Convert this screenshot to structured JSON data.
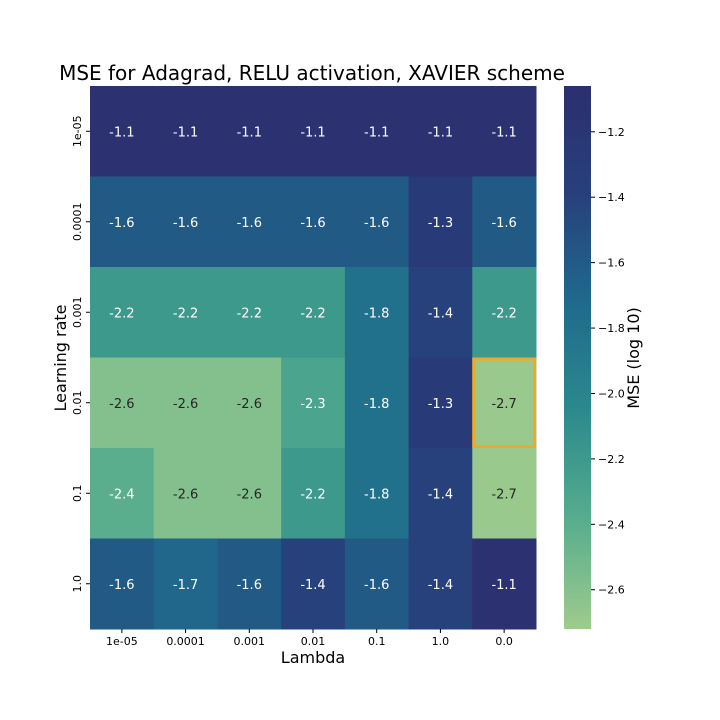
{
  "chart_data": {
    "type": "heatmap",
    "title": "MSE for Adagrad, RELU activation, XAVIER scheme",
    "xlabel": "Lambda",
    "ylabel": "Learning rate",
    "x_categories": [
      "1e-05",
      "0.0001",
      "0.001",
      "0.01",
      "0.1",
      "1.0",
      "0.0"
    ],
    "y_categories": [
      "1e-05",
      "0.0001",
      "0.001",
      "0.01",
      "0.1",
      "1.0"
    ],
    "values": [
      [
        -1.1,
        -1.1,
        -1.1,
        -1.1,
        -1.1,
        -1.1,
        -1.1
      ],
      [
        -1.6,
        -1.6,
        -1.6,
        -1.6,
        -1.6,
        -1.3,
        -1.6
      ],
      [
        -2.2,
        -2.2,
        -2.2,
        -2.2,
        -1.8,
        -1.4,
        -2.2
      ],
      [
        -2.6,
        -2.6,
        -2.6,
        -2.3,
        -1.8,
        -1.3,
        -2.7
      ],
      [
        -2.4,
        -2.6,
        -2.6,
        -2.2,
        -1.8,
        -1.4,
        -2.7
      ],
      [
        -1.6,
        -1.7,
        -1.6,
        -1.4,
        -1.6,
        -1.4,
        -1.1
      ]
    ],
    "highlight": {
      "row": 3,
      "col": 6,
      "color": "#f5a623"
    },
    "colorbar": {
      "label": "MSE (log 10)",
      "vmin": -2.72,
      "vmax": -1.06,
      "ticks": [
        -1.2,
        -1.4,
        -1.6,
        -1.8,
        -2.0,
        -2.2,
        -2.4,
        -2.6
      ],
      "tick_labels": [
        "−1.2",
        "−1.4",
        "−1.6",
        "−1.8",
        "−2.0",
        "−2.2",
        "−2.4",
        "−2.6"
      ],
      "colors": [
        "#9ecb8d",
        "#57ad8d",
        "#2b8a8d",
        "#1f6a8c",
        "#27407c",
        "#2b2f6f"
      ]
    }
  }
}
